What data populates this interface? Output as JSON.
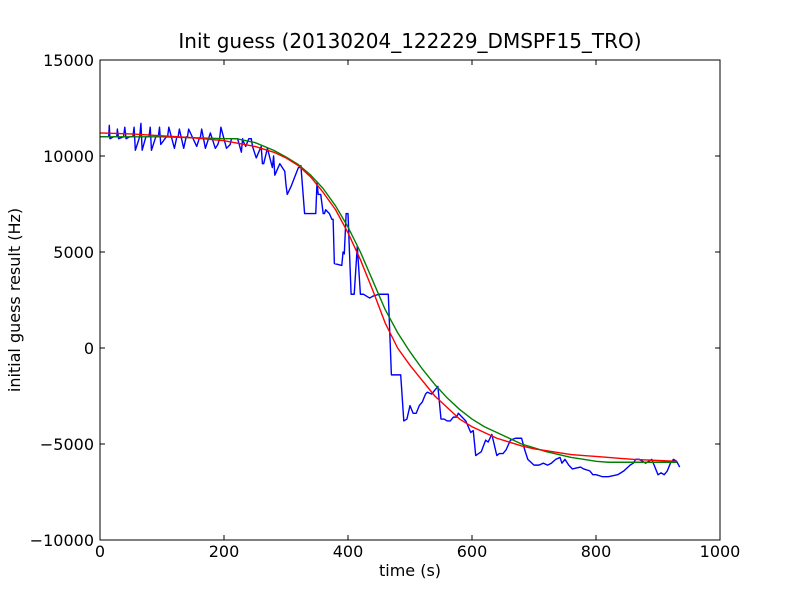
{
  "chart_data": {
    "type": "line",
    "title": "Init guess (20130204_122229_DMSPF15_TRO)",
    "xlabel": "time (s)",
    "ylabel": "initial guess result (Hz)",
    "xlim": [
      0,
      1000
    ],
    "ylim": [
      -10000,
      15000
    ],
    "x_ticks": [
      0,
      200,
      400,
      600,
      800,
      1000
    ],
    "y_ticks": [
      -10000,
      -5000,
      0,
      5000,
      10000,
      15000
    ],
    "x_tick_labels": [
      "0",
      "200",
      "400",
      "600",
      "800",
      "1000"
    ],
    "y_tick_labels": [
      "−10000",
      "−5000",
      "0",
      "5000",
      "10000",
      "15000"
    ],
    "grid": false,
    "legend": false,
    "series": [
      {
        "color": "#0000ff",
        "x": [
          0,
          14,
          15,
          16,
          22,
          27,
          28,
          30,
          38,
          40,
          42,
          48,
          53,
          55,
          57,
          64,
          66,
          68,
          74,
          79,
          81,
          83,
          90,
          94,
          96,
          98,
          107,
          109,
          111,
          120,
          124,
          126,
          128,
          135,
          139,
          141,
          143,
          156,
          160,
          162,
          164,
          170,
          174,
          176,
          178,
          186,
          190,
          193,
          195,
          204,
          210,
          212,
          214,
          222,
          228,
          230,
          232,
          235,
          240,
          244,
          246,
          252,
          260,
          262,
          264,
          270,
          278,
          280,
          282,
          290,
          298,
          300,
          302,
          308,
          320,
          322,
          324,
          330,
          335,
          348,
          350,
          352,
          356,
          360,
          362,
          364,
          370,
          374,
          376,
          378,
          390,
          392,
          394,
          397,
          400,
          405,
          410,
          415,
          420,
          425,
          430,
          435,
          440,
          450,
          465,
          470,
          475,
          480,
          485,
          490,
          495,
          500,
          505,
          510,
          515,
          520,
          525,
          528,
          535,
          540,
          545,
          550,
          555,
          560,
          565,
          570,
          575,
          578,
          590,
          594,
          598,
          602,
          606,
          615,
          622,
          626,
          632,
          640,
          644,
          650,
          655,
          662,
          670,
          680,
          685,
          690,
          700,
          708,
          715,
          722,
          728,
          735,
          742,
          745,
          750,
          756,
          762,
          775,
          780,
          790,
          795,
          800,
          810,
          820,
          835,
          845,
          855,
          860,
          864,
          870,
          880,
          890,
          900,
          905,
          910,
          915,
          920,
          925,
          930,
          935
        ],
        "y": [
          11000,
          11000,
          11600,
          10900,
          11000,
          11000,
          11400,
          10900,
          11000,
          11500,
          10900,
          11000,
          11000,
          11500,
          10300,
          11000,
          11700,
          10300,
          11000,
          11000,
          11500,
          10300,
          11000,
          11000,
          11500,
          10600,
          11000,
          11000,
          11500,
          10400,
          11000,
          11000,
          11400,
          10400,
          11000,
          11000,
          11400,
          10500,
          10900,
          11000,
          11400,
          10400,
          10800,
          11000,
          11200,
          10400,
          10600,
          10900,
          11500,
          10400,
          10600,
          10900,
          10900,
          10900,
          10200,
          10900,
          10700,
          10500,
          10900,
          10900,
          10500,
          9900,
          10500,
          9600,
          9600,
          10400,
          9400,
          10000,
          9000,
          9600,
          9200,
          8500,
          8000,
          8400,
          9400,
          9400,
          9500,
          7000,
          7000,
          7000,
          8600,
          8000,
          8000,
          7000,
          7000,
          7200,
          7000,
          6700,
          6700,
          4400,
          4300,
          5000,
          4900,
          7000,
          7000,
          2800,
          2800,
          5300,
          2800,
          2800,
          2700,
          2600,
          2700,
          2800,
          2800,
          -1400,
          -1400,
          -1400,
          -1400,
          -3800,
          -3700,
          -3000,
          -3400,
          -3400,
          -3000,
          -2800,
          -2400,
          -2300,
          -2400,
          -2200,
          -2000,
          -3700,
          -3700,
          -3800,
          -3800,
          -3600,
          -3600,
          -3400,
          -3800,
          -4100,
          -4400,
          -4300,
          -5600,
          -5400,
          -4800,
          -4900,
          -4500,
          -5600,
          -5500,
          -5500,
          -5300,
          -4800,
          -4700,
          -4700,
          -5300,
          -5800,
          -6100,
          -6100,
          -6000,
          -6100,
          -6000,
          -5800,
          -5700,
          -6000,
          -5800,
          -6100,
          -6300,
          -6200,
          -6300,
          -6400,
          -6600,
          -6600,
          -6700,
          -6700,
          -6600,
          -6400,
          -6100,
          -6000,
          -5800,
          -5800,
          -6000,
          -5800,
          -6600,
          -6500,
          -6600,
          -6400,
          -6000,
          -5800,
          -5900,
          -6200
        ]
      },
      {
        "color": "#008000",
        "x": [
          0,
          50,
          100,
          150,
          200,
          220,
          250,
          280,
          300,
          320,
          340,
          360,
          380,
          400,
          420,
          440,
          460,
          480,
          500,
          520,
          540,
          560,
          580,
          600,
          620,
          640,
          660,
          680,
          700,
          720,
          740,
          760,
          780,
          800,
          820,
          840,
          860,
          880,
          900,
          930
        ],
        "y": [
          11000,
          11000,
          11000,
          10950,
          10900,
          10900,
          10700,
          10300,
          9950,
          9550,
          9000,
          8300,
          7400,
          6300,
          5000,
          3500,
          2000,
          800,
          -200,
          -1100,
          -1900,
          -2600,
          -3200,
          -3700,
          -4100,
          -4400,
          -4700,
          -5000,
          -5200,
          -5400,
          -5550,
          -5700,
          -5800,
          -5900,
          -5950,
          -5950,
          -5950,
          -5950,
          -5950,
          -5950
        ]
      },
      {
        "color": "#ff0000",
        "x": [
          0,
          50,
          100,
          150,
          200,
          250,
          280,
          300,
          320,
          340,
          360,
          380,
          400,
          420,
          440,
          460,
          480,
          500,
          520,
          540,
          560,
          580,
          600,
          620,
          640,
          660,
          680,
          700,
          720,
          740,
          760,
          780,
          800,
          820,
          840,
          860,
          880,
          900,
          930
        ],
        "y": [
          11200,
          11150,
          11050,
          10950,
          10800,
          10500,
          10200,
          9900,
          9500,
          8900,
          8100,
          7200,
          6000,
          4600,
          3000,
          1300,
          0,
          -900,
          -1700,
          -2500,
          -3100,
          -3700,
          -4100,
          -4400,
          -4700,
          -4900,
          -5100,
          -5250,
          -5350,
          -5450,
          -5550,
          -5600,
          -5650,
          -5700,
          -5750,
          -5800,
          -5830,
          -5860,
          -5900
        ]
      }
    ]
  }
}
